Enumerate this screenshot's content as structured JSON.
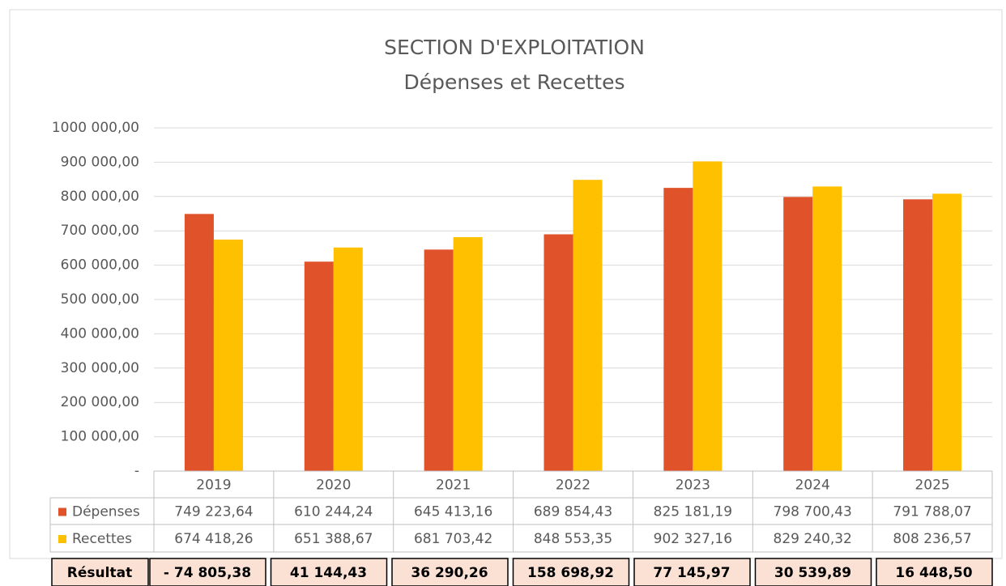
{
  "chart_data": {
    "type": "bar",
    "title": "SECTION D'EXPLOITATION",
    "subtitle": "Dépenses et Recettes",
    "categories": [
      "2019",
      "2020",
      "2021",
      "2022",
      "2023",
      "2024",
      "2025"
    ],
    "series": [
      {
        "name": "Dépenses",
        "color": "#e0522a",
        "values": [
          749223.64,
          610244.24,
          645413.16,
          689854.43,
          825181.19,
          798700.43,
          791788.07
        ],
        "value_labels": [
          "749 223,64",
          "610 244,24",
          "645 413,16",
          "689 854,43",
          "825 181,19",
          "798 700,43",
          "791 788,07"
        ]
      },
      {
        "name": "Recettes",
        "color": "#ffc000",
        "values": [
          674418.26,
          651388.67,
          681703.42,
          848553.35,
          902327.16,
          829240.32,
          808236.57
        ],
        "value_labels": [
          "674 418,26",
          "651 388,67",
          "681 703,42",
          "848 553,35",
          "902 327,16",
          "829 240,32",
          "808 236,57"
        ]
      }
    ],
    "ylim": [
      0,
      1000000
    ],
    "yticks": [
      {
        "value": 0,
        "label": "-"
      },
      {
        "value": 100000,
        "label": "100 000,00"
      },
      {
        "value": 200000,
        "label": "200 000,00"
      },
      {
        "value": 300000,
        "label": "300 000,00"
      },
      {
        "value": 400000,
        "label": "400 000,00"
      },
      {
        "value": 500000,
        "label": "500 000,00"
      },
      {
        "value": 600000,
        "label": "600 000,00"
      },
      {
        "value": 700000,
        "label": "700 000,00"
      },
      {
        "value": 800000,
        "label": "800 000,00"
      },
      {
        "value": 900000,
        "label": "900 000,00"
      },
      {
        "value": 1000000,
        "label": "1000 000,00"
      }
    ],
    "grid": true
  },
  "result": {
    "label": "Résultat",
    "values": [
      "- 74 805,38",
      "41 144,43",
      "36 290,26",
      "158 698,92",
      "77 145,97",
      "30 539,89",
      "16 448,50"
    ]
  }
}
